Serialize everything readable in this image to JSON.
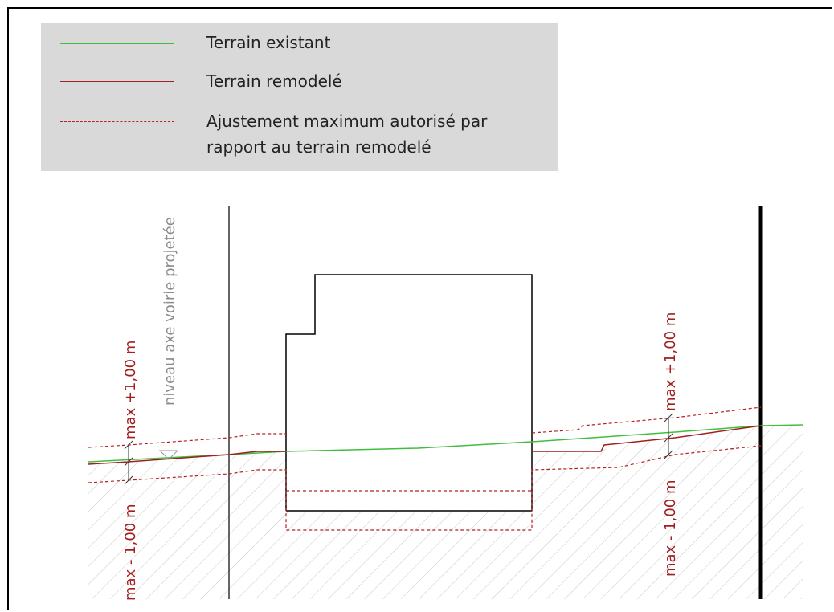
{
  "legend": {
    "items": [
      {
        "label": "Terrain existant",
        "color": "#3fbf3f",
        "style": "solid"
      },
      {
        "label": "Terrain remodelé",
        "color": "#a11f1f",
        "style": "solid"
      },
      {
        "label": "Ajustement maximum autorisé par",
        "label2": "rapport au terrain remodelé",
        "color": "#b52222",
        "style": "dashed"
      }
    ]
  },
  "annotations": {
    "road_axis_label": "niveau axe voirie projetée",
    "left_plus": "max +1,00 m",
    "left_minus": "max - 1,00 m",
    "right_plus": "max +1,00 m",
    "right_minus": "max - 1,00 m"
  },
  "colors": {
    "existing_terrain": "#3fbf3f",
    "remodeled_terrain": "#a11f1f",
    "annotation_red": "#a11f1f",
    "road_label_gray": "#8c8c8c",
    "legend_bg": "#d9d9d9"
  }
}
